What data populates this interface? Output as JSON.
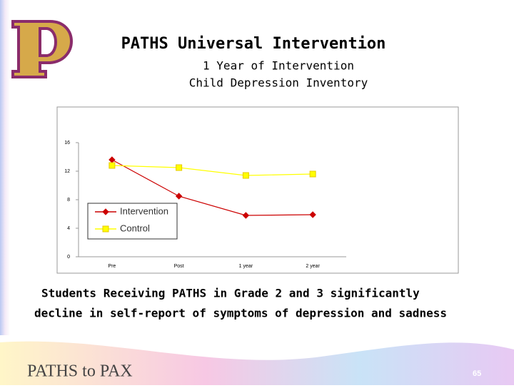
{
  "slide": {
    "title": "PATHS Universal Intervention",
    "subtitle": [
      "1 Year of Intervention",
      "Child Depression Inventory"
    ],
    "caption": [
      "Students Receiving PATHS in Grade 2 and 3 significantly",
      "decline in self-report of symptoms of depression and sadness"
    ],
    "footer": "PATHS to PAX",
    "page_number": "65"
  },
  "chart_data": {
    "type": "line",
    "categories": [
      "Pre",
      "Post",
      "1 year",
      "2 year"
    ],
    "series": [
      {
        "name": "Intervention",
        "color": "#cc0000",
        "marker": "diamond",
        "values": [
          13.6,
          8.5,
          5.8,
          5.9
        ]
      },
      {
        "name": "Control",
        "color": "#ffff00",
        "marker": "square",
        "values": [
          12.8,
          12.5,
          11.4,
          11.6
        ]
      }
    ],
    "ylim": [
      0,
      16
    ],
    "yticks": [
      0,
      4,
      8,
      12,
      16
    ],
    "grid": false,
    "legend": "lower left"
  }
}
